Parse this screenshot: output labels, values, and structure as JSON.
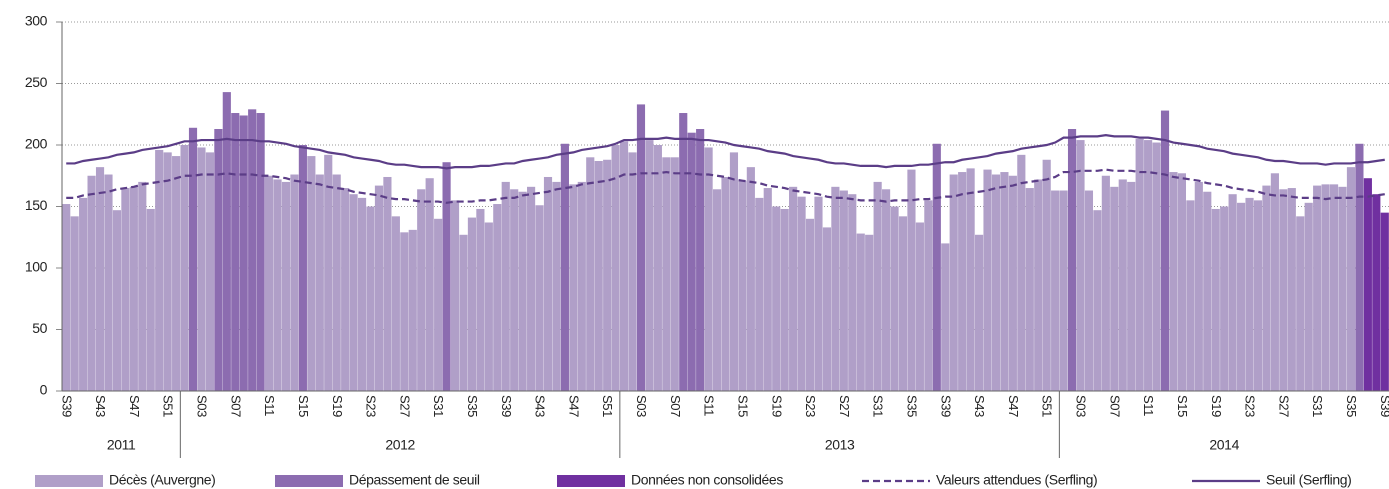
{
  "chart_data": {
    "type": "bar",
    "ylim": [
      0,
      300
    ],
    "yticks": [
      0,
      50,
      100,
      150,
      200,
      250,
      300
    ],
    "grid": true,
    "legend": "bottom",
    "years": [
      "2011",
      "2012",
      "2013",
      "2014"
    ],
    "categories": [
      "S39",
      null,
      null,
      null,
      "S43",
      null,
      null,
      null,
      "S47",
      null,
      null,
      null,
      "S51",
      null,
      null,
      null,
      "S03",
      null,
      null,
      null,
      "S07",
      null,
      null,
      null,
      "S11",
      null,
      null,
      null,
      "S15",
      null,
      null,
      null,
      "S19",
      null,
      null,
      null,
      "S23",
      null,
      null,
      null,
      "S27",
      null,
      null,
      null,
      "S31",
      null,
      null,
      null,
      "S35",
      null,
      null,
      null,
      "S39",
      null,
      null,
      null,
      "S43",
      null,
      null,
      null,
      "S47",
      null,
      null,
      null,
      "S51",
      null,
      null,
      null,
      "S03",
      null,
      null,
      null,
      "S07",
      null,
      null,
      null,
      "S11",
      null,
      null,
      null,
      "S15",
      null,
      null,
      null,
      "S19",
      null,
      null,
      null,
      "S23",
      null,
      null,
      null,
      "S27",
      null,
      null,
      null,
      "S31",
      null,
      null,
      null,
      "S35",
      null,
      null,
      null,
      "S39",
      null,
      null,
      null,
      "S43",
      null,
      null,
      null,
      "S47",
      null,
      null,
      null,
      "S51",
      null,
      null,
      null,
      "S03",
      null,
      null,
      null,
      "S07",
      null,
      null,
      null,
      "S11",
      null,
      null,
      null,
      "S15",
      null,
      null,
      null,
      "S19",
      null,
      null,
      null,
      "S23",
      null,
      null,
      null,
      "S27",
      null,
      null,
      null,
      "S31",
      null,
      null,
      null,
      "S35",
      null,
      null,
      null,
      "S39"
    ],
    "series": [
      {
        "name": "Décès (Auvergne)",
        "type": "bar",
        "color": "#b09fc8",
        "values": [
          152,
          142,
          157,
          175,
          182,
          176,
          147,
          165,
          166,
          170,
          148,
          196,
          194,
          191,
          200,
          null,
          198,
          194,
          null,
          null,
          null,
          null,
          null,
          null,
          175,
          172,
          170,
          176,
          null,
          191,
          176,
          192,
          176,
          165,
          160,
          157,
          150,
          167,
          174,
          142,
          129,
          131,
          164,
          173,
          140,
          null,
          155,
          127,
          141,
          148,
          137,
          152,
          170,
          164,
          162,
          166,
          151,
          174,
          170,
          null,
          168,
          170,
          190,
          187,
          188,
          200,
          203,
          194,
          null,
          204,
          200,
          190,
          190,
          null,
          null,
          null,
          198,
          164,
          174,
          194,
          171,
          182,
          157,
          165,
          150,
          148,
          166,
          158,
          140,
          158,
          133,
          166,
          163,
          160,
          128,
          127,
          170,
          164,
          150,
          142,
          180,
          137,
          155,
          null,
          120,
          176,
          178,
          181,
          127,
          180,
          176,
          178,
          175,
          192,
          165,
          172,
          188,
          163,
          163,
          null,
          204,
          163,
          147,
          175,
          166,
          172,
          170,
          205,
          204,
          202,
          null,
          178,
          177,
          155,
          170,
          162,
          148,
          150,
          160,
          153,
          157,
          155,
          167,
          177,
          164,
          165,
          142,
          153,
          167,
          168,
          168,
          166,
          182,
          null,
          null,
          null,
          null
        ]
      },
      {
        "name": "Dépassement de seuil",
        "type": "bar",
        "color": "#8c6cb0",
        "values": [
          null,
          null,
          null,
          null,
          null,
          null,
          null,
          null,
          null,
          null,
          null,
          null,
          null,
          null,
          null,
          214,
          null,
          null,
          213,
          243,
          226,
          224,
          229,
          226,
          null,
          null,
          null,
          null,
          200,
          null,
          null,
          null,
          null,
          null,
          null,
          null,
          null,
          null,
          null,
          null,
          null,
          null,
          null,
          null,
          null,
          186,
          null,
          null,
          null,
          null,
          null,
          null,
          null,
          null,
          null,
          null,
          null,
          null,
          null,
          201,
          null,
          null,
          null,
          null,
          null,
          null,
          null,
          null,
          233,
          null,
          null,
          null,
          null,
          226,
          210,
          213,
          null,
          null,
          null,
          null,
          null,
          null,
          null,
          null,
          null,
          null,
          null,
          null,
          null,
          null,
          null,
          null,
          null,
          null,
          null,
          null,
          null,
          null,
          null,
          null,
          null,
          null,
          null,
          201,
          null,
          null,
          null,
          null,
          null,
          null,
          null,
          null,
          null,
          null,
          null,
          null,
          null,
          null,
          null,
          213,
          null,
          null,
          null,
          null,
          null,
          null,
          null,
          null,
          null,
          null,
          228,
          null,
          null,
          null,
          null,
          null,
          null,
          null,
          null,
          null,
          null,
          null,
          null,
          null,
          null,
          null,
          null,
          null,
          null,
          null,
          null,
          null,
          null,
          201,
          null,
          null,
          null
        ]
      },
      {
        "name": "Données non consolidées",
        "type": "bar",
        "color": "#7030a0",
        "values": [
          null,
          null,
          null,
          null,
          null,
          null,
          null,
          null,
          null,
          null,
          null,
          null,
          null,
          null,
          null,
          null,
          null,
          null,
          null,
          null,
          null,
          null,
          null,
          null,
          null,
          null,
          null,
          null,
          null,
          null,
          null,
          null,
          null,
          null,
          null,
          null,
          null,
          null,
          null,
          null,
          null,
          null,
          null,
          null,
          null,
          null,
          null,
          null,
          null,
          null,
          null,
          null,
          null,
          null,
          null,
          null,
          null,
          null,
          null,
          null,
          null,
          null,
          null,
          null,
          null,
          null,
          null,
          null,
          null,
          null,
          null,
          null,
          null,
          null,
          null,
          null,
          null,
          null,
          null,
          null,
          null,
          null,
          null,
          null,
          null,
          null,
          null,
          null,
          null,
          null,
          null,
          null,
          null,
          null,
          null,
          null,
          null,
          null,
          null,
          null,
          null,
          null,
          null,
          null,
          null,
          null,
          null,
          null,
          null,
          null,
          null,
          null,
          null,
          null,
          null,
          null,
          null,
          null,
          null,
          null,
          null,
          null,
          null,
          null,
          null,
          null,
          null,
          null,
          null,
          null,
          null,
          null,
          null,
          null,
          null,
          null,
          null,
          null,
          null,
          null,
          null,
          null,
          null,
          null,
          null,
          null,
          null,
          null,
          null,
          null,
          null,
          null,
          null,
          null,
          173,
          160,
          145
        ]
      },
      {
        "name": "Valeurs attendues (Serfling)",
        "type": "line",
        "style": "dashed",
        "color": "#5b3d87",
        "values": [
          157,
          157,
          159,
          160,
          161,
          162,
          164,
          165,
          166,
          168,
          169,
          170,
          171,
          173,
          175,
          175,
          176,
          176,
          176,
          177,
          176,
          176,
          176,
          175,
          175,
          174,
          173,
          171,
          170,
          169,
          168,
          166,
          165,
          164,
          162,
          161,
          160,
          159,
          157,
          156,
          156,
          155,
          154,
          154,
          154,
          153,
          154,
          154,
          154,
          155,
          155,
          156,
          157,
          157,
          159,
          160,
          161,
          162,
          164,
          165,
          166,
          168,
          169,
          170,
          171,
          173,
          176,
          176,
          177,
          177,
          177,
          178,
          177,
          177,
          177,
          176,
          176,
          175,
          174,
          172,
          171,
          170,
          169,
          167,
          166,
          165,
          163,
          162,
          161,
          160,
          158,
          157,
          157,
          156,
          155,
          155,
          155,
          154,
          155,
          155,
          155,
          156,
          156,
          157,
          158,
          158,
          160,
          161,
          162,
          163,
          165,
          166,
          167,
          169,
          170,
          171,
          172,
          174,
          178,
          178,
          179,
          179,
          179,
          180,
          179,
          179,
          179,
          178,
          178,
          177,
          176,
          174,
          173,
          172,
          171,
          169,
          168,
          167,
          165,
          164,
          163,
          162,
          160,
          159,
          159,
          158,
          157,
          157,
          157,
          156,
          157,
          157,
          157,
          158,
          158,
          159,
          160
        ]
      },
      {
        "name": "Seuil (Serfling)",
        "type": "line",
        "style": "solid",
        "color": "#5b3d87",
        "values": [
          185,
          185,
          187,
          188,
          189,
          190,
          192,
          193,
          194,
          196,
          197,
          198,
          199,
          201,
          203,
          203,
          204,
          204,
          204,
          205,
          204,
          204,
          204,
          203,
          203,
          202,
          201,
          199,
          198,
          197,
          196,
          194,
          193,
          192,
          190,
          189,
          188,
          187,
          185,
          184,
          184,
          183,
          182,
          182,
          182,
          181,
          182,
          182,
          182,
          183,
          183,
          184,
          185,
          185,
          187,
          188,
          189,
          190,
          192,
          193,
          194,
          196,
          197,
          198,
          199,
          201,
          204,
          204,
          205,
          205,
          205,
          206,
          205,
          205,
          205,
          204,
          204,
          203,
          202,
          200,
          199,
          198,
          197,
          195,
          194,
          193,
          191,
          190,
          189,
          188,
          186,
          185,
          185,
          184,
          183,
          183,
          183,
          182,
          183,
          183,
          183,
          184,
          184,
          185,
          186,
          186,
          188,
          189,
          190,
          191,
          193,
          194,
          195,
          197,
          198,
          199,
          200,
          202,
          206,
          206,
          207,
          207,
          207,
          208,
          207,
          207,
          207,
          206,
          206,
          205,
          204,
          202,
          201,
          200,
          199,
          197,
          196,
          195,
          193,
          192,
          191,
          190,
          188,
          187,
          187,
          186,
          185,
          185,
          185,
          184,
          185,
          185,
          185,
          186,
          186,
          187,
          188
        ]
      }
    ]
  }
}
